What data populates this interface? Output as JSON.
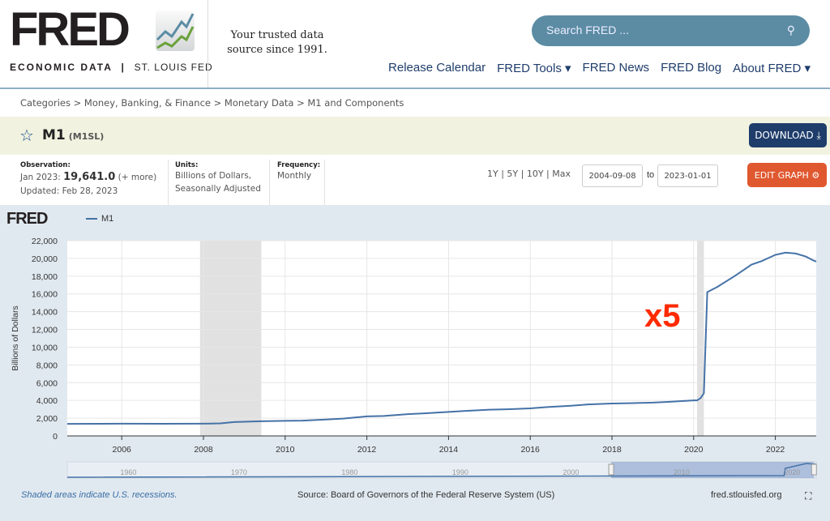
{
  "header": {
    "logo_text": "FRED",
    "logo_sub_left": "ECONOMIC DATA",
    "logo_sub_right": "ST. LOUIS FED",
    "tagline": "Your trusted data source since 1991.",
    "search_placeholder": "Search FRED ...",
    "nav": [
      "Release Calendar",
      "FRED Tools ▾",
      "FRED News",
      "FRED Blog",
      "About FRED ▾"
    ]
  },
  "breadcrumb": "Categories > Money, Banking, & Finance > Monetary Data > M1 and Components",
  "series": {
    "title": "M1",
    "id": "(M1SL)",
    "download_label": "DOWNLOAD",
    "edit_label": "EDIT GRAPH"
  },
  "meta": {
    "obs_label": "Observation:",
    "obs_date": "Jan 2023:",
    "obs_value": "19,641.0",
    "obs_more": "(+ more)",
    "updated": "Updated: Feb 28, 2023",
    "units_label": "Units:",
    "units_1": "Billions of Dollars,",
    "units_2": "Seasonally Adjusted",
    "freq_label": "Frequency:",
    "freq": "Monthly"
  },
  "range": {
    "buttons": "1Y | 5Y | 10Y | Max",
    "start": "2004-09-08",
    "to": "to",
    "end": "2023-01-01"
  },
  "footer": {
    "note": "Shaded areas indicate U.S. recessions.",
    "source": "Source: Board of Governors of the Federal Reserve System (US)",
    "url": "fred.stlouisfed.org"
  },
  "colors": {
    "line": "#4572a7",
    "recession": "#e1e1e1",
    "annotation": "#ff2a00",
    "download": "#1f3d6b",
    "edit": "#e0582f"
  },
  "chart_data": {
    "type": "line",
    "ylabel": "Billions of Dollars",
    "xlim": [
      "2004-09",
      "2023-01"
    ],
    "ylim": [
      0,
      22000
    ],
    "yticks": [
      0,
      2000,
      4000,
      6000,
      8000,
      10000,
      12000,
      14000,
      16000,
      18000,
      20000,
      22000
    ],
    "xticks": [
      "2006",
      "2008",
      "2010",
      "2012",
      "2014",
      "2016",
      "2018",
      "2020",
      "2022"
    ],
    "legend": [
      "M1"
    ],
    "annotation": "x5",
    "grid": true,
    "recessions": [
      [
        "2007-12",
        "2009-06"
      ],
      [
        "2020-02",
        "2020-04"
      ]
    ],
    "navigator_ticks": [
      "1960",
      "1970",
      "1980",
      "1990",
      "2000",
      "2010",
      "2020"
    ],
    "series": [
      {
        "name": "M1",
        "points": [
          [
            "2004-09",
            1360
          ],
          [
            "2006-01",
            1380
          ],
          [
            "2007-01",
            1370
          ],
          [
            "2008-01",
            1380
          ],
          [
            "2008-06",
            1420
          ],
          [
            "2008-10",
            1560
          ],
          [
            "2009-01",
            1600
          ],
          [
            "2009-06",
            1650
          ],
          [
            "2010-01",
            1700
          ],
          [
            "2010-06",
            1720
          ],
          [
            "2011-01",
            1850
          ],
          [
            "2011-06",
            1950
          ],
          [
            "2012-01",
            2200
          ],
          [
            "2012-06",
            2250
          ],
          [
            "2013-01",
            2450
          ],
          [
            "2013-06",
            2550
          ],
          [
            "2014-01",
            2700
          ],
          [
            "2014-06",
            2820
          ],
          [
            "2015-01",
            2950
          ],
          [
            "2015-06",
            3000
          ],
          [
            "2016-01",
            3100
          ],
          [
            "2016-06",
            3250
          ],
          [
            "2017-01",
            3400
          ],
          [
            "2017-06",
            3550
          ],
          [
            "2018-01",
            3650
          ],
          [
            "2018-06",
            3680
          ],
          [
            "2019-01",
            3750
          ],
          [
            "2019-06",
            3850
          ],
          [
            "2020-01",
            4000
          ],
          [
            "2020-02",
            4000
          ],
          [
            "2020-03",
            4250
          ],
          [
            "2020-04",
            4800
          ],
          [
            "2020-05",
            16200
          ],
          [
            "2020-08",
            16800
          ],
          [
            "2021-01",
            18000
          ],
          [
            "2021-06",
            19300
          ],
          [
            "2021-09",
            19700
          ],
          [
            "2022-01",
            20400
          ],
          [
            "2022-04",
            20650
          ],
          [
            "2022-07",
            20550
          ],
          [
            "2022-10",
            20200
          ],
          [
            "2022-12",
            19800
          ],
          [
            "2023-01",
            19641
          ]
        ]
      }
    ]
  }
}
